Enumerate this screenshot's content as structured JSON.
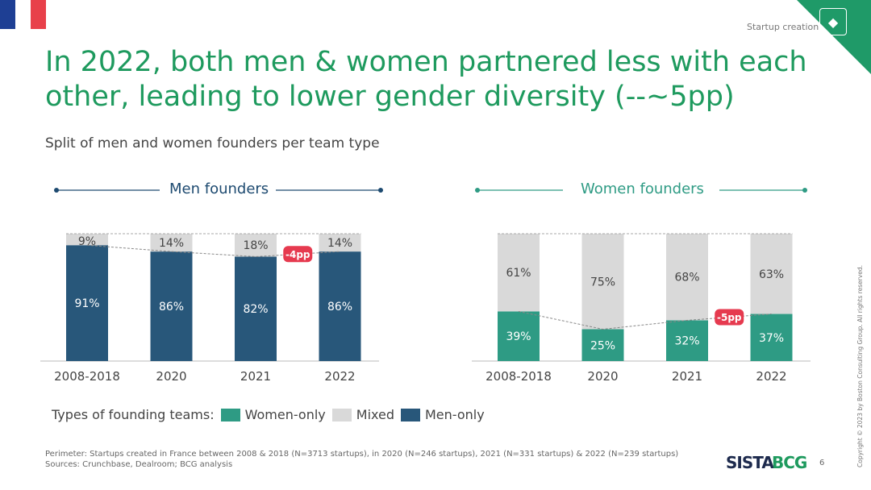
{
  "header": {
    "section": "Startup creation",
    "title": "In 2022, both men & women partnered less with each other, leading to lower gender diversity (--~5pp)",
    "subtitle": "Split of men and women founders per team type",
    "flag_colors": [
      "#1e3f94",
      "#ffffff",
      "#e8404a"
    ],
    "accent": "#1e9a5e"
  },
  "chart_data": [
    {
      "type": "bar",
      "stacked": true,
      "title": "Men founders",
      "categories": [
        "2008-2018",
        "2020",
        "2021",
        "2022"
      ],
      "series": [
        {
          "name": "Men-only",
          "color": "#28577a",
          "values": [
            91,
            86,
            82,
            86
          ]
        },
        {
          "name": "Mixed",
          "color": "#d9d9d9",
          "values": [
            9,
            14,
            18,
            14
          ]
        }
      ],
      "ylim": [
        0,
        100
      ],
      "annotation": {
        "text": "-4pp",
        "between": [
          "2021",
          "2022"
        ]
      }
    },
    {
      "type": "bar",
      "stacked": true,
      "title": "Women founders",
      "categories": [
        "2008-2018",
        "2020",
        "2021",
        "2022"
      ],
      "series": [
        {
          "name": "Women-only",
          "color": "#2e9b84",
          "values": [
            39,
            25,
            32,
            37
          ]
        },
        {
          "name": "Mixed",
          "color": "#d9d9d9",
          "values": [
            61,
            75,
            68,
            63
          ]
        }
      ],
      "ylim": [
        0,
        100
      ],
      "annotation": {
        "text": "-5pp",
        "between": [
          "2021",
          "2022"
        ]
      }
    }
  ],
  "legend": {
    "label": "Types of founding teams:",
    "items": [
      {
        "label": "Women-only",
        "color": "#2e9b84"
      },
      {
        "label": "Mixed",
        "color": "#d9d9d9"
      },
      {
        "label": "Men-only",
        "color": "#28577a"
      }
    ]
  },
  "footer": {
    "perimeter": "Perimeter: Startups created in France between 2008 & 2018 (N=3713 startups), in 2020 (N=246 startups), 2021 (N=331 startups) & 2022 (N=239 startups)",
    "sources": "Sources: Crunchbase, Dealroom; BCG analysis",
    "logo_sista": "SISTA",
    "logo_bcg": "BCG",
    "page": "6",
    "copyright": "Copyright © 2023 by Boston Consulting Group. All rights reserved."
  }
}
